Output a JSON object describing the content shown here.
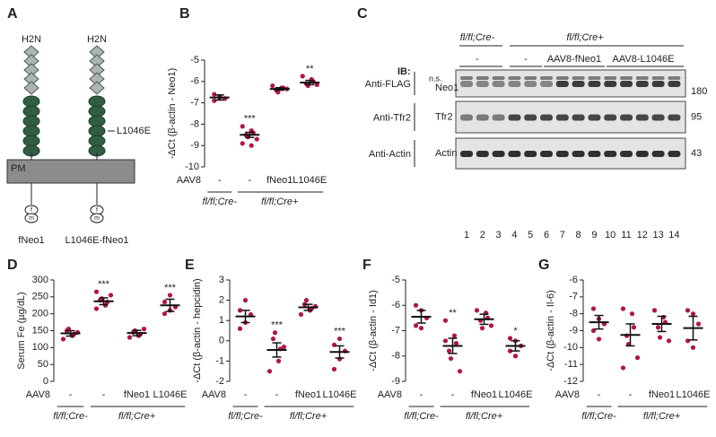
{
  "diagram": {
    "letter": "A",
    "membrane": "PM",
    "mutation": "L1046E",
    "constructs": [
      {
        "terminus": "H2N",
        "name": "fNeo1",
        "tag_top": "f",
        "tag_bottom": "m"
      },
      {
        "terminus": "H2N",
        "name": "L1046E-fNeo1",
        "tag_top": "f",
        "tag_bottom": "m"
      }
    ]
  },
  "blot": {
    "letter": "C",
    "genotypes": [
      "fl/fl;Cre-",
      "fl/fl;Cre+"
    ],
    "treatments": [
      "-",
      "-",
      "AAV8-fNeo1",
      "AAV8-L1046E"
    ],
    "ib": "IB:",
    "note": "n.s.",
    "rows": [
      {
        "antibody": "Anti-FLAG",
        "protein": "Neo1",
        "mw": "180"
      },
      {
        "antibody": "Anti-Tfr2",
        "protein": "Tfr2",
        "mw": "95"
      },
      {
        "antibody": "Anti-Actin",
        "protein": "Actin",
        "mw": "43"
      }
    ],
    "lanes": [
      "1",
      "2",
      "3",
      "4",
      "5",
      "6",
      "7",
      "8",
      "9",
      "10",
      "11",
      "12",
      "13",
      "14"
    ]
  },
  "chart_data": [
    {
      "type": "dot",
      "letter": "B",
      "y_label": "-ΔCt (β-actin - Neo1)",
      "x_label": "AAV8",
      "categories": [
        "-",
        "-",
        "fNeo1",
        "L1046E"
      ],
      "groups": [
        "fl/fl;Cre-",
        "fl/fl;Cre+"
      ],
      "color": "#b3134a",
      "ylim": [
        -10,
        -5
      ],
      "yticks": [
        -5,
        -6,
        -7,
        -8,
        -9,
        -10
      ],
      "points": [
        [
          -6.6,
          -6.7,
          -6.8,
          -6.9,
          -6.75
        ],
        [
          -8.1,
          -8.3,
          -8.4,
          -8.5,
          -8.6,
          -8.7,
          -8.9,
          -9.0
        ],
        [
          -6.2,
          -6.3,
          -6.3,
          -6.4,
          -6.5,
          -6.35
        ],
        [
          -5.75,
          -5.9,
          -6.0,
          -6.1,
          -6.2,
          -6.15
        ]
      ],
      "means": [
        -6.75,
        -8.5,
        -6.35,
        -6.05
      ],
      "errors": [
        0.12,
        0.12,
        0.06,
        0.1
      ],
      "annotations": [
        null,
        "***",
        null,
        "**"
      ]
    },
    {
      "type": "dot",
      "letter": "D",
      "y_label": "Serum Fe (µg/dL)",
      "x_label": "AAV8",
      "categories": [
        "-",
        "-",
        "fNeo1",
        "L1046E"
      ],
      "groups": [
        "fl/fl;Cre-",
        "fl/fl;Cre+"
      ],
      "color": "#b3134a",
      "ylim": [
        0,
        300
      ],
      "yticks": [
        0,
        50,
        100,
        150,
        200,
        250,
        300
      ],
      "points": [
        [
          125,
          135,
          140,
          150,
          155,
          145
        ],
        [
          215,
          225,
          235,
          240,
          245,
          255,
          265
        ],
        [
          130,
          135,
          140,
          145,
          150,
          155
        ],
        [
          200,
          210,
          220,
          235,
          255
        ]
      ],
      "means": [
        142,
        237,
        143,
        225
      ],
      "errors": [
        8,
        10,
        8,
        18
      ],
      "annotations": [
        null,
        "***",
        null,
        "***"
      ]
    },
    {
      "type": "dot",
      "letter": "E",
      "y_label": "-ΔCt (β-actin - hepcidin)",
      "x_label": "AAV8",
      "categories": [
        "-",
        "-",
        "fNeo1",
        "L1046E"
      ],
      "groups": [
        "fl/fl;Cre-",
        "fl/fl;Cre+"
      ],
      "color": "#b3134a",
      "ylim": [
        -2,
        3
      ],
      "yticks": [
        -2,
        -1,
        0,
        1,
        2,
        3
      ],
      "points": [
        [
          0.6,
          0.9,
          1.3,
          1.5,
          2.0
        ],
        [
          -1.5,
          -1.0,
          -0.4,
          0.1,
          0.4,
          -0.3
        ],
        [
          1.3,
          1.5,
          1.6,
          1.8,
          2.0,
          1.7
        ],
        [
          -1.4,
          -0.9,
          -0.5,
          -0.2,
          0.1
        ]
      ],
      "means": [
        1.2,
        -0.45,
        1.65,
        -0.55
      ],
      "errors": [
        0.3,
        0.35,
        0.15,
        0.3
      ],
      "annotations": [
        null,
        "***",
        null,
        "***"
      ]
    },
    {
      "type": "dot",
      "letter": "F",
      "y_label": "-ΔCt (β-actin - Id1)",
      "x_label": "AAV8",
      "categories": [
        "-",
        "-",
        "fNeo1",
        "L1046E"
      ],
      "groups": [
        "fl/fl;Cre-",
        "fl/fl;Cre+"
      ],
      "color": "#b3134a",
      "ylim": [
        -9,
        -5
      ],
      "yticks": [
        -5,
        -6,
        -7,
        -8,
        -9
      ],
      "points": [
        [
          -6.0,
          -6.2,
          -6.5,
          -6.8,
          -6.9
        ],
        [
          -6.6,
          -7.2,
          -7.5,
          -7.8,
          -8.1,
          -8.6,
          -7.4
        ],
        [
          -6.2,
          -6.3,
          -6.5,
          -6.6,
          -6.9,
          -6.8
        ],
        [
          -7.3,
          -7.4,
          -7.6,
          -7.8,
          -8.0
        ]
      ],
      "means": [
        -6.45,
        -7.6,
        -6.55,
        -7.6
      ],
      "errors": [
        0.25,
        0.3,
        0.2,
        0.2
      ],
      "annotations": [
        null,
        "**",
        null,
        "*"
      ]
    },
    {
      "type": "dot",
      "letter": "G",
      "y_label": "-ΔCt (β-actin - Il-6)",
      "x_label": "AAV8",
      "categories": [
        "-",
        "-",
        "fNeo1",
        "L1046E"
      ],
      "groups": [
        "fl/fl;Cre-",
        "fl/fl;Cre+"
      ],
      "color": "#b3134a",
      "ylim": [
        -12,
        -6
      ],
      "yticks": [
        -6,
        -7,
        -8,
        -9,
        -10,
        -11,
        -12
      ],
      "points": [
        [
          -7.7,
          -8.3,
          -8.6,
          -9.0,
          -9.5
        ],
        [
          -7.7,
          -8.0,
          -8.8,
          -9.3,
          -9.8,
          -10.6,
          -11.2
        ],
        [
          -7.8,
          -8.2,
          -8.5,
          -8.8,
          -9.4,
          -9.6
        ],
        [
          -7.8,
          -8.0,
          -8.6,
          -9.6,
          -10.0
        ]
      ],
      "means": [
        -8.5,
        -9.25,
        -8.6,
        -8.85
      ],
      "errors": [
        0.4,
        0.65,
        0.45,
        0.7
      ],
      "annotations": null
    }
  ]
}
